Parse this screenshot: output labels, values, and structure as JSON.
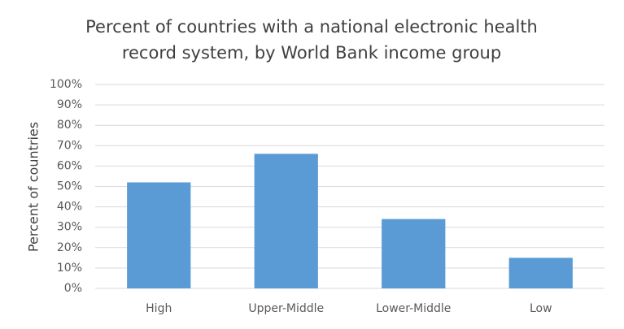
{
  "chart_data": {
    "type": "bar",
    "title": [
      "Percent of countries with a national electronic health",
      "record system, by World Bank income group"
    ],
    "y_label": "Percent of countries",
    "categories": [
      "High",
      "Upper-Middle",
      "Lower-Middle",
      "Low"
    ],
    "values": [
      52,
      66,
      34,
      15
    ],
    "color": "#5b9bd5",
    "ylim": [
      0,
      100
    ],
    "yticks": [
      {
        "value": 0,
        "label": "0%"
      },
      {
        "value": 10,
        "label": "10%"
      },
      {
        "value": 20,
        "label": "20%"
      },
      {
        "value": 30,
        "label": "30%"
      },
      {
        "value": 40,
        "label": "40%"
      },
      {
        "value": 50,
        "label": "50%"
      },
      {
        "value": 60,
        "label": "60%"
      },
      {
        "value": 70,
        "label": "70%"
      },
      {
        "value": 80,
        "label": "80%"
      },
      {
        "value": 90,
        "label": "90%"
      },
      {
        "value": 100,
        "label": "100%"
      }
    ],
    "grid": true
  }
}
